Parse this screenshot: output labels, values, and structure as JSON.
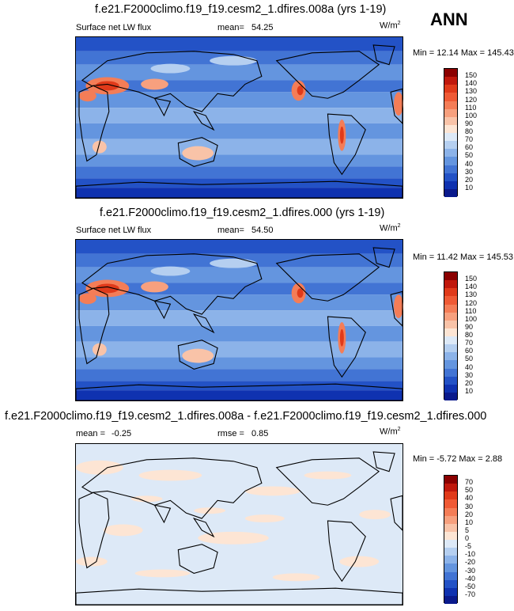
{
  "season": "ANN",
  "panels": [
    {
      "title": "f.e21.F2000climo.f19_f19.cesm2_1.dfires.008a (yrs 1-19)",
      "variable": "Surface net LW flux",
      "mean_label": "mean=",
      "mean_value": "54.25",
      "units": "W/m",
      "units_sup": "2",
      "minmax": "Min =  12.14 Max = 145.43",
      "colorbar_labels": [
        "150",
        "140",
        "130",
        "120",
        "110",
        "100",
        "90",
        "80",
        "70",
        "60",
        "50",
        "40",
        "30",
        "20",
        "10"
      ],
      "colorbar_colors": [
        "#8b0000",
        "#c0180c",
        "#e03a1a",
        "#ef5a35",
        "#f47d57",
        "#f7a07e",
        "#f9c3a8",
        "#fde5d4",
        "#dde9f7",
        "#b5cff0",
        "#8cb3e9",
        "#6495df",
        "#4274d4",
        "#2352c6",
        "#0f32b0",
        "#0a1a8c"
      ]
    },
    {
      "title": "f.e21.F2000climo.f19_f19.cesm2_1.dfires.000 (yrs 1-19)",
      "variable": "Surface net LW flux",
      "mean_label": "mean=",
      "mean_value": "54.50",
      "units": "W/m",
      "units_sup": "2",
      "minmax": "Min =  11.42 Max = 145.53",
      "colorbar_labels": [
        "150",
        "140",
        "130",
        "120",
        "110",
        "100",
        "90",
        "80",
        "70",
        "60",
        "50",
        "40",
        "30",
        "20",
        "10"
      ],
      "colorbar_colors": [
        "#8b0000",
        "#c0180c",
        "#e03a1a",
        "#ef5a35",
        "#f47d57",
        "#f7a07e",
        "#f9c3a8",
        "#fde5d4",
        "#dde9f7",
        "#b5cff0",
        "#8cb3e9",
        "#6495df",
        "#4274d4",
        "#2352c6",
        "#0f32b0",
        "#0a1a8c"
      ]
    },
    {
      "title": "f.e21.F2000climo.f19_f19.cesm2_1.dfires.008a - f.e21.F2000climo.f19_f19.cesm2_1.dfires.000",
      "mean_label": "mean =",
      "mean_value": "-0.25",
      "rmse_label": "rmse =",
      "rmse_value": "0.85",
      "units": "W/m",
      "units_sup": "2",
      "minmax": "Min =  -5.72 Max =   2.88",
      "colorbar_labels": [
        "70",
        "50",
        "40",
        "30",
        "20",
        "10",
        "5",
        "0",
        "-5",
        "-10",
        "-20",
        "-30",
        "-40",
        "-50",
        "-70"
      ],
      "colorbar_colors": [
        "#8b0000",
        "#c0180c",
        "#e03a1a",
        "#ef5a35",
        "#f47d57",
        "#f7a07e",
        "#f9c3a8",
        "#fde5d4",
        "#dde9f7",
        "#b5cff0",
        "#8cb3e9",
        "#6495df",
        "#4274d4",
        "#2352c6",
        "#0f32b0",
        "#0a1a8c"
      ]
    }
  ],
  "chart_data": {
    "type": "heatmap",
    "description_fields": {
      "field": "Surface net LW flux",
      "units": "W/m2"
    },
    "panels": [
      {
        "case": "f.e21.F2000climo.f19_f19.cesm2_1.dfires.008a (yrs 1-19)",
        "mean": 54.25,
        "min": 12.14,
        "max": 145.43,
        "levels": [
          10,
          20,
          30,
          40,
          50,
          60,
          70,
          80,
          90,
          100,
          110,
          120,
          130,
          140,
          150
        ]
      },
      {
        "case": "f.e21.F2000climo.f19_f19.cesm2_1.dfires.000 (yrs 1-19)",
        "mean": 54.5,
        "min": 11.42,
        "max": 145.53,
        "levels": [
          10,
          20,
          30,
          40,
          50,
          60,
          70,
          80,
          90,
          100,
          110,
          120,
          130,
          140,
          150
        ]
      },
      {
        "case": "f.e21.F2000climo.f19_f19.cesm2_1.dfires.008a - f.e21.F2000climo.f19_f19.cesm2_1.dfires.000",
        "mean": -0.25,
        "rmse": 0.85,
        "min": -5.72,
        "max": 2.88,
        "levels": [
          -70,
          -50,
          -40,
          -30,
          -20,
          -10,
          -5,
          0,
          5,
          10,
          20,
          30,
          40,
          50,
          70
        ]
      }
    ]
  }
}
